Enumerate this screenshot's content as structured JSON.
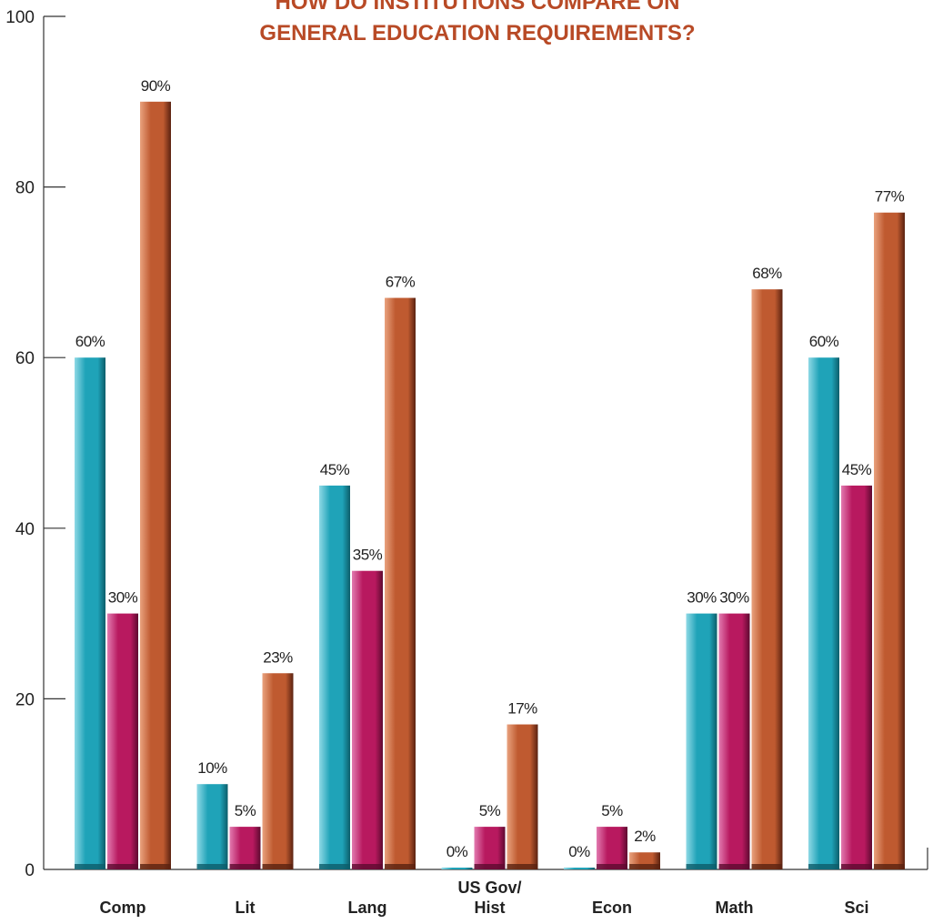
{
  "chart_data": {
    "type": "bar",
    "title_lines": [
      "HOW DO INSTITUTIONS COMPARE ON",
      "GENERAL EDUCATION REQUIREMENTS?"
    ],
    "title_color": "#b84a26",
    "categories": [
      [
        "Comp"
      ],
      [
        "Lit"
      ],
      [
        "Lang"
      ],
      [
        "US Gov/",
        "Hist"
      ],
      [
        "Econ"
      ],
      [
        "Math"
      ],
      [
        "Sci"
      ]
    ],
    "series": [
      {
        "values": [
          60,
          10,
          45,
          0,
          0,
          30,
          60
        ],
        "labels": [
          "60%",
          "10%",
          "45%",
          "0%",
          "0%",
          "30%",
          "60%"
        ],
        "color": "#1fa3b8",
        "dark": "#0c5d6a",
        "light": "#8fd9e6"
      },
      {
        "values": [
          30,
          5,
          35,
          5,
          5,
          30,
          45
        ],
        "labels": [
          "30%",
          "5%",
          "35%",
          "5%",
          "5%",
          "30%",
          "45%"
        ],
        "color": "#b8195f",
        "dark": "#5e0a30",
        "light": "#e27ab0"
      },
      {
        "values": [
          90,
          23,
          67,
          17,
          2,
          68,
          77
        ],
        "labels": [
          "90%",
          "23%",
          "67%",
          "17%",
          "2%",
          "68%",
          "77%"
        ],
        "color": "#bf5a30",
        "dark": "#5a2210",
        "light": "#e9a27e"
      }
    ],
    "ylim": [
      0,
      100
    ],
    "yticks": [
      0,
      20,
      40,
      60,
      80,
      100
    ],
    "grid": false,
    "legend": "none"
  }
}
